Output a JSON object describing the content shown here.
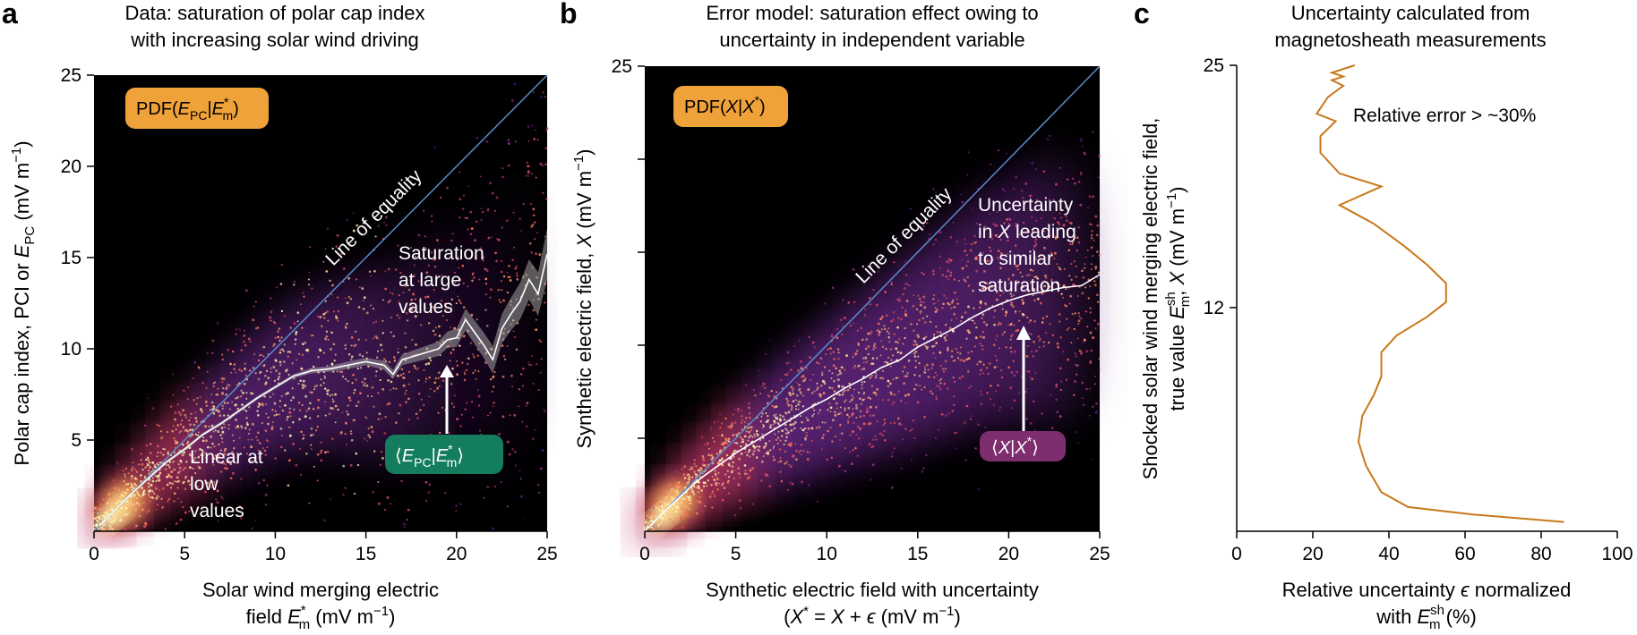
{
  "panels": {
    "a": {
      "letter": "a",
      "title_lines": [
        "Data: saturation of polar cap index",
        "with increasing solar wind driving"
      ],
      "xlabel_lines": [
        "Solar wind merging electric",
        "field E*m (mV m−1)"
      ],
      "ylabel": "Polar cap index, PCI or EPC (mV m−1)",
      "badge_pdf": "PDF(EPC|E*m)",
      "badge_mean": "⟨EPC|E*m⟩",
      "line_of_equality": "Line of equality",
      "annotation_saturation": [
        "Saturation",
        "at large",
        "values"
      ],
      "annotation_linear": [
        "Linear at",
        "low",
        "values"
      ],
      "colors": {
        "badge_pdf": "#f0a23a",
        "badge_mean": "#137d5d",
        "equality_line": "#5b8ccb",
        "band": "#9a9a9a"
      }
    },
    "b": {
      "letter": "b",
      "title_lines": [
        "Error model: saturation effect owing to",
        "uncertainty in independent variable"
      ],
      "xlabel_lines": [
        "Synthetic electric field with uncertainty",
        "(X* = X + ϵ (mV m−1)"
      ],
      "ylabel": "Synthetic electric field, X (mV m−1)",
      "badge_pdf": "PDF(X|X*)",
      "badge_mean": "⟨X|X*⟩",
      "line_of_equality": "Line of equality",
      "annotation_uncertainty": [
        "Uncertainty",
        "in X leading",
        "to similar",
        "saturation"
      ],
      "colors": {
        "badge_pdf": "#f0a23a",
        "badge_mean": "#7e2d6f",
        "equality_line": "#5b8ccb"
      }
    },
    "c": {
      "letter": "c",
      "title_lines": [
        "Uncertainty calculated from",
        "magnetosheath measurements"
      ],
      "xlabel_lines": [
        "Relative uncertainty ϵ normalized",
        "with Esh m (%)"
      ],
      "ylabel_lines": [
        "Shocked solar wind merging electric field,",
        "true value Esh m, X (mV m−1)"
      ],
      "annotation": "Relative error > ~30%",
      "colors": {
        "curve": "#c8781a"
      }
    }
  },
  "chart_data": [
    {
      "panel": "a",
      "type": "scatter",
      "title": "Data: saturation of polar cap index with increasing solar wind driving",
      "xlabel": "Solar wind merging electric field E*m (mV m−1)",
      "ylabel": "Polar cap index, PCI or EPC (mV m−1)",
      "xlim": [
        0,
        25
      ],
      "ylim": [
        0,
        25
      ],
      "xticks": [
        "0",
        "5",
        "10",
        "15",
        "20",
        "25"
      ],
      "yticks": [
        "5",
        "10",
        "15",
        "20",
        "25"
      ],
      "series": [
        {
          "name": "Line of equality",
          "x": [
            0,
            25
          ],
          "y": [
            0,
            25
          ]
        },
        {
          "name": "⟨EPC|E*m⟩",
          "x": [
            0.3,
            1,
            2,
            3,
            4,
            5,
            6,
            7,
            8,
            9,
            10,
            11,
            12,
            13,
            14,
            15,
            16,
            16.5,
            17,
            18,
            19,
            19.5,
            20,
            20.5,
            21,
            21.5,
            22,
            22.5,
            23,
            23.5,
            24,
            24.5,
            25
          ],
          "y": [
            0.3,
            1.0,
            2.0,
            2.9,
            3.8,
            4.5,
            5.3,
            5.9,
            6.6,
            7.3,
            7.9,
            8.5,
            8.8,
            8.9,
            9.1,
            9.3,
            9.1,
            8.6,
            9.4,
            9.7,
            10.0,
            10.5,
            10.6,
            11.6,
            10.9,
            10.2,
            9.4,
            11.1,
            11.9,
            12.6,
            13.8,
            13.0,
            15.2
          ],
          "band_halfwidth": [
            0.1,
            0.1,
            0.1,
            0.1,
            0.1,
            0.1,
            0.1,
            0.1,
            0.1,
            0.1,
            0.1,
            0.1,
            0.15,
            0.15,
            0.2,
            0.2,
            0.25,
            0.25,
            0.3,
            0.35,
            0.4,
            0.45,
            0.5,
            0.6,
            0.65,
            0.7,
            0.75,
            0.8,
            0.9,
            1.0,
            1.1,
            1.2,
            1.4
          ]
        }
      ]
    },
    {
      "panel": "b",
      "type": "scatter",
      "title": "Error model: saturation effect owing to uncertainty in independent variable",
      "xlabel": "Synthetic electric field with uncertainty (X* = X + ϵ (mV m−1)",
      "ylabel": "Synthetic electric field, X (mV m−1)",
      "xlim": [
        0,
        25
      ],
      "ylim": [
        0,
        25
      ],
      "xticks": [
        "0",
        "5",
        "10",
        "15",
        "20",
        "25"
      ],
      "yticks": [
        "25"
      ],
      "series": [
        {
          "name": "Line of equality",
          "x": [
            0,
            25
          ],
          "y": [
            0,
            25
          ]
        },
        {
          "name": "⟨X|X*⟩",
          "x": [
            0,
            1,
            2,
            3,
            4,
            5,
            6,
            7,
            8,
            9,
            10,
            11,
            12,
            13,
            14,
            15,
            16,
            17,
            18,
            19,
            20,
            21,
            22,
            23,
            24,
            25
          ],
          "y": [
            0,
            1.0,
            1.9,
            2.8,
            3.5,
            4.2,
            4.8,
            5.4,
            6.0,
            6.6,
            7.1,
            7.7,
            8.2,
            8.8,
            9.2,
            9.9,
            10.4,
            10.9,
            11.5,
            12.0,
            12.4,
            12.7,
            12.9,
            13.1,
            13.2,
            13.8
          ]
        }
      ]
    },
    {
      "panel": "c",
      "type": "line",
      "title": "Uncertainty calculated from magnetosheath measurements",
      "xlabel": "Relative uncertainty ϵ normalized with Esh m (%)",
      "ylabel": "Shocked solar wind merging electric field, true value Esh m, X (mV m−1)",
      "xlim": [
        0,
        100
      ],
      "ylim": [
        0,
        25
      ],
      "xticks": [
        "0",
        "20",
        "40",
        "60",
        "80",
        "100"
      ],
      "yticks": [
        "12",
        "25"
      ],
      "series": [
        {
          "name": "",
          "x": [
            86,
            62,
            45,
            38,
            34,
            32,
            33,
            36,
            38,
            38,
            42,
            50,
            55,
            55,
            50,
            44,
            36,
            27,
            38,
            27,
            22,
            22,
            26,
            21,
            24,
            28,
            25,
            28,
            25,
            31
          ],
          "y": [
            0.5,
            0.9,
            1.3,
            2.1,
            3.5,
            4.8,
            6.2,
            7.3,
            8.3,
            9.6,
            10.5,
            11.5,
            12.3,
            13.3,
            14.3,
            15.3,
            16.5,
            17.5,
            18.5,
            19.2,
            20.3,
            21.2,
            22.0,
            22.4,
            23.3,
            23.9,
            24.2,
            24.4,
            24.6,
            25.0
          ]
        }
      ]
    }
  ]
}
